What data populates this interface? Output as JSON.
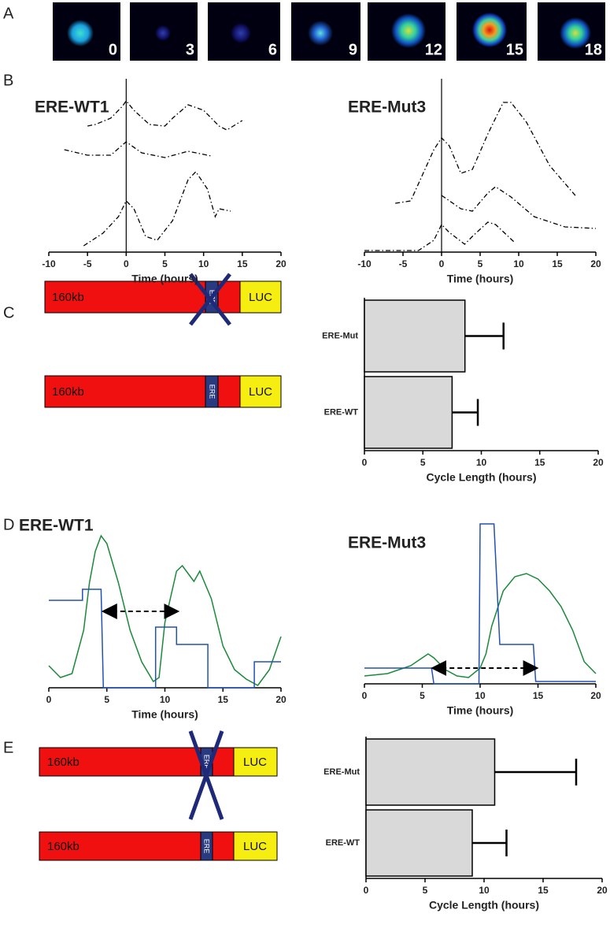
{
  "panel_labels": [
    "A",
    "B",
    "C",
    "D",
    "E"
  ],
  "panel_a": {
    "labels": [
      "0",
      "3",
      "6",
      "9",
      "12",
      "15",
      "18"
    ]
  },
  "construct_labels": {
    "size": "160kb",
    "element": "ERE",
    "reporter": "LUC"
  },
  "chart_data": [
    {
      "type": "line",
      "title": "ERE-WT1",
      "xlabel": "Time (hours)",
      "xlim": [
        -10,
        20
      ],
      "xticks": [
        -10,
        -5,
        0,
        5,
        10,
        15,
        20
      ],
      "ylim": [
        0,
        10
      ],
      "line_style": "dashdot",
      "vline": 0,
      "series": [
        {
          "color": "#000000",
          "x": [
            -5,
            -4,
            -2,
            -0.5,
            0,
            1,
            3,
            5,
            6,
            8,
            10,
            12,
            13,
            15
          ],
          "values": [
            8,
            8.1,
            8.5,
            9.25,
            9.6,
            9,
            8.1,
            8,
            8.5,
            9.35,
            9,
            8,
            7.75,
            8.35
          ]
        },
        {
          "color": "#000000",
          "x": [
            -8,
            -5,
            -2,
            0,
            2,
            5,
            8,
            11
          ],
          "values": [
            6.5,
            6.15,
            6.15,
            7,
            6.3,
            6,
            6.4,
            6.1
          ]
        },
        {
          "color": "#000000",
          "x": [
            -5.5,
            -3,
            -1,
            0,
            1,
            2.5,
            4,
            6,
            8,
            9,
            10.5,
            11.5,
            12,
            13.5
          ],
          "values": [
            0.4,
            1.2,
            2.25,
            3.25,
            2.75,
            1,
            0.75,
            2,
            4.6,
            5.1,
            4,
            2.25,
            2.75,
            2.6
          ]
        }
      ]
    },
    {
      "type": "line",
      "title": "ERE-Mut3",
      "xlabel": "Time (hours)",
      "xlim": [
        -10,
        20
      ],
      "xticks": [
        -10,
        -5,
        0,
        5,
        10,
        15,
        20
      ],
      "ylim": [
        0,
        10
      ],
      "line_style": "dashdot",
      "vline": 0,
      "series": [
        {
          "color": "#000000",
          "x": [
            -6,
            -4,
            -1,
            0,
            1,
            2.5,
            4,
            6,
            8,
            9,
            11,
            14,
            17.5
          ],
          "values": [
            3.1,
            3.25,
            6.5,
            7.25,
            6.75,
            5,
            5.25,
            7.5,
            9.5,
            9.5,
            8.25,
            5.5,
            3.5
          ]
        },
        {
          "color": "#000000",
          "x": [
            0,
            2.5,
            4,
            6,
            7,
            9,
            12,
            16,
            20
          ],
          "values": [
            3.6,
            2.75,
            2.6,
            3.75,
            4.15,
            3.5,
            2.25,
            1.6,
            1.5
          ]
        },
        {
          "color": "#000000",
          "x": [
            -10,
            -3,
            -1,
            0,
            1,
            3,
            4,
            6,
            7,
            9.5
          ],
          "values": [
            0.1,
            0.1,
            0.75,
            1.75,
            1.25,
            0.5,
            1,
            1.9,
            1.75,
            0.6
          ]
        }
      ]
    },
    {
      "type": "hbar",
      "xlabel": "Cycle Length (hours)",
      "categories": [
        "ERE-Mut",
        "ERE-WT"
      ],
      "values": [
        8.6,
        7.5
      ],
      "errors": [
        3.3,
        2.2
      ],
      "color": "#d9d9d9",
      "xlim": [
        0,
        20
      ],
      "xticks": [
        0,
        5,
        10,
        15,
        20
      ]
    },
    {
      "type": "line",
      "title": "ERE-WT1",
      "xlabel": "Time (hours)",
      "xlim": [
        0,
        20
      ],
      "xticks": [
        0,
        5,
        10,
        15,
        20
      ],
      "ylim": [
        0,
        11
      ],
      "line_style": "solid",
      "arrow": {
        "x": [
          4.8,
          11
        ],
        "y": 4.85
      },
      "series": [
        {
          "color": "#1a8a3a",
          "x": [
            0,
            1,
            2,
            3,
            3.5,
            4,
            4.5,
            5,
            6,
            7,
            8,
            9,
            9.5,
            10,
            11,
            11.5,
            12,
            12.5,
            13,
            14,
            15,
            16,
            17,
            18,
            19,
            20
          ],
          "values": [
            1.4,
            0.65,
            0.9,
            3.65,
            6.65,
            8.65,
            9.65,
            9.15,
            6.65,
            3.65,
            1.65,
            0.4,
            0.65,
            4.15,
            7.4,
            7.75,
            7.25,
            6.75,
            7.4,
            5.65,
            2.65,
            1.15,
            0.55,
            0.15,
            1.15,
            3.25
          ]
        },
        {
          "color": "#2251b5",
          "x": [
            0,
            2.9,
            2.9,
            4.5,
            4.7,
            9.2,
            9.2,
            11,
            11,
            13.7,
            13.7,
            17.7,
            17.7,
            20
          ],
          "values": [
            5.55,
            5.55,
            6.25,
            6.25,
            0,
            0,
            3.85,
            3.85,
            2.75,
            2.75,
            0,
            0,
            1.65,
            1.65
          ]
        }
      ]
    },
    {
      "type": "line",
      "title": "ERE-Mut3",
      "xlabel": "Time (hours)",
      "xlim": [
        0,
        20
      ],
      "xticks": [
        0,
        5,
        10,
        15,
        20
      ],
      "ylim": [
        0,
        11
      ],
      "line_style": "solid",
      "arrow": {
        "x": [
          6,
          14.8
        ],
        "y": 1
      },
      "series": [
        {
          "color": "#1a8a3a",
          "x": [
            0,
            2,
            4,
            5,
            5.5,
            6,
            7,
            8,
            9,
            10,
            10.5,
            11,
            12,
            13,
            14,
            15,
            16,
            17,
            18,
            19,
            20
          ],
          "values": [
            0.5,
            0.65,
            1.15,
            1.65,
            1.9,
            1.65,
            0.9,
            0.5,
            0.4,
            1,
            1.9,
            3.65,
            5.9,
            6.8,
            7,
            6.65,
            5.9,
            4.9,
            3.4,
            1.4,
            0.65
          ]
        },
        {
          "color": "#2251b5",
          "x": [
            0,
            5.8,
            6,
            9.9,
            10,
            11.2,
            11.7,
            14.6,
            14.8,
            20
          ],
          "values": [
            1,
            1,
            0,
            0,
            10.15,
            10.15,
            2.5,
            2.5,
            0.15,
            0.15
          ]
        }
      ]
    },
    {
      "type": "hbar",
      "xlabel": "Cycle Length (hours)",
      "categories": [
        "ERE-Mut",
        "ERE-WT"
      ],
      "values": [
        10.9,
        9.0
      ],
      "errors": [
        6.9,
        2.9
      ],
      "color": "#d9d9d9",
      "xlim": [
        0,
        20
      ],
      "xticks": [
        0,
        5,
        10,
        15,
        20
      ]
    }
  ]
}
